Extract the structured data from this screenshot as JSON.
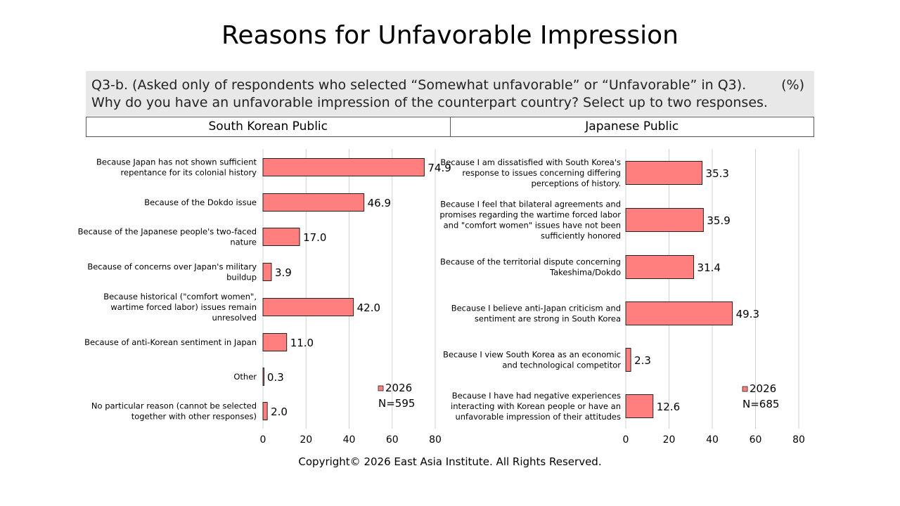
{
  "title": "Reasons for Unfavorable Impression",
  "question": {
    "line1": "Q3-b. (Asked only of respondents who selected “Somewhat unfavorable” or “Unfavorable” in Q3).",
    "line2": "Why do you have an unfavorable impression of the counterpart country? Select up to two responses.",
    "unit": "(%)"
  },
  "headers": {
    "left": "South Korean Public",
    "right": "Japanese Public"
  },
  "footer": "Copyright© 2026 East Asia Institute. All Rights Reserved.",
  "colors": {
    "bar": "#ff7f7f",
    "bar_stroke": "#222222",
    "grid": "#d0d0d0"
  },
  "chart_data": [
    {
      "type": "bar",
      "orientation": "horizontal",
      "title": "South Korean Public",
      "categories": [
        [
          "Because Japan has not shown sufficient",
          "repentance for its colonial history"
        ],
        [
          "Because of the Dokdo issue"
        ],
        [
          "Because of the Japanese people's two-faced",
          "nature"
        ],
        [
          "Because of concerns over Japan's military",
          "buildup"
        ],
        [
          "Because historical (\"comfort women\",",
          "wartime forced labor) issues remain",
          "unresolved"
        ],
        [
          "Because of anti-Korean sentiment in Japan"
        ],
        [
          "Other"
        ],
        [
          "No particular reason (cannot be selected",
          "together with other responses)"
        ]
      ],
      "series": [
        {
          "name": "2026",
          "note": "N=595",
          "values": [
            74.9,
            46.9,
            17.0,
            3.9,
            42.0,
            11.0,
            0.3,
            2.0
          ]
        }
      ],
      "data_labels": [
        "74.9",
        "46.9",
        "17.0",
        "3.9",
        "42.0",
        "11.0",
        "0.3",
        "2.0"
      ],
      "xlim": [
        0,
        80
      ],
      "xticks": [
        0,
        20,
        40,
        60,
        80
      ],
      "grid": true,
      "legend": "bottom-right"
    },
    {
      "type": "bar",
      "orientation": "horizontal",
      "title": "Japanese Public",
      "categories": [
        [
          "Because I am dissatisfied with South Korea's",
          "response to issues concerning differing",
          "perceptions of history."
        ],
        [
          "Because I feel that bilateral agreements and",
          "promises regarding the wartime forced labor",
          "and \"comfort women\" issues have not been",
          "sufficiently honored"
        ],
        [
          "Because of the territorial dispute concerning",
          "Takeshima/Dokdo"
        ],
        [
          "Because I believe anti-Japan criticism and",
          "sentiment are strong in South Korea"
        ],
        [
          "Because I view South Korea as an economic",
          "and technological competitor"
        ],
        [
          "Because I have had negative experiences",
          "interacting with Korean people or have an",
          "unfavorable impression of their attitudes"
        ]
      ],
      "series": [
        {
          "name": "2026",
          "note": "N=685",
          "values": [
            35.3,
            35.9,
            31.4,
            49.3,
            2.3,
            12.6
          ]
        }
      ],
      "data_labels": [
        "35.3",
        "35.9",
        "31.4",
        "49.3",
        "2.3",
        "12.6"
      ],
      "xlim": [
        0,
        80
      ],
      "xticks": [
        0,
        20,
        40,
        60,
        80
      ],
      "grid": true,
      "legend": "bottom-right"
    }
  ]
}
